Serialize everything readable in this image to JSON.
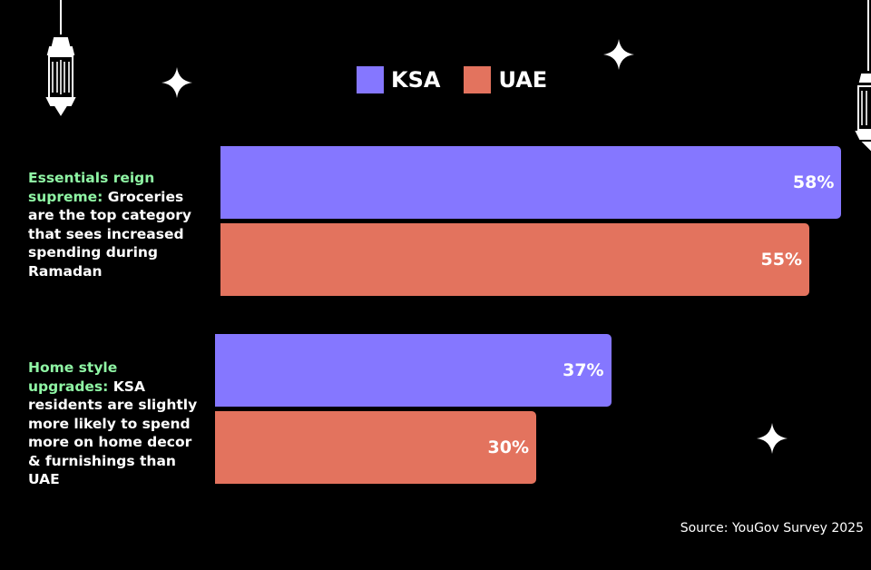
{
  "chart_data": {
    "type": "bar",
    "orientation": "horizontal",
    "categories": [
      {
        "highlight": "Essentials reign supreme:",
        "text": " Groceries are the top category that sees increased spending during Ramadan"
      },
      {
        "highlight": "Home style upgrades:",
        "text": " KSA residents are slightly more likely to spend more on home decor & furnishings than UAE"
      }
    ],
    "series": [
      {
        "name": "KSA",
        "color": "#8577ff",
        "values": [
          58,
          37
        ],
        "labels": [
          "58%",
          "37%"
        ]
      },
      {
        "name": "UAE",
        "color": "#e3735e",
        "values": [
          55,
          30
        ],
        "labels": [
          "55%",
          "30%"
        ]
      }
    ],
    "xlim": [
      0,
      100
    ],
    "legend_position": "top-center",
    "grid": false,
    "source": "Source: YouGov Survey 2025"
  },
  "decorations": [
    "lantern-icon",
    "sparkle-icon"
  ],
  "colors": {
    "background": "#000000",
    "highlight_text": "#8ff5a4"
  }
}
